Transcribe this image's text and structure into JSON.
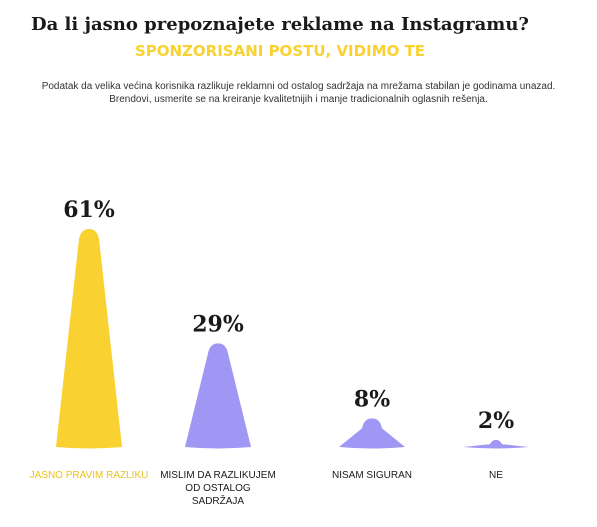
{
  "title": "Da li jasno prepoznajete reklame na Instagramu?",
  "subtitle": "SPONZORISANI POSTU, VIDIMO TE",
  "description": [
    "Podatak da velika većina korisnika razlikuje reklamni od ostalog sadržaja na mrežama stabilan je godinama unazad.",
    "Brendovi, usmerite se na kreiranje kvalitetnijih i manje tradicionalnih oglasnih rešenja."
  ],
  "colors": {
    "accent_yellow": "#f9d231",
    "purple": "#9f97f3",
    "text_dark": "#1a1a1a"
  },
  "chart_data": {
    "type": "bar",
    "categories": [
      [
        "JASNO PRAVIM RAZLIKU"
      ],
      [
        "MISLIM DA RAZLIKUJEM",
        "OD OSTALOG",
        "SADRŽAJA"
      ],
      [
        "NISAM SIGURAN"
      ],
      [
        "NE"
      ]
    ],
    "values": [
      61,
      29,
      8,
      2
    ],
    "value_labels": [
      "61%",
      "29%",
      "8%",
      "2%"
    ],
    "bar_colors": [
      "#f9d231",
      "#9f97f3",
      "#9f97f3",
      "#9f97f3"
    ],
    "category_label_colors": [
      "#e8c21f",
      "#1a1a1a",
      "#1a1a1a",
      "#1a1a1a"
    ],
    "ylim": [
      0,
      61
    ],
    "title": "Da li jasno prepoznajete reklame na Instagramu?",
    "xlabel": "",
    "ylabel": ""
  }
}
